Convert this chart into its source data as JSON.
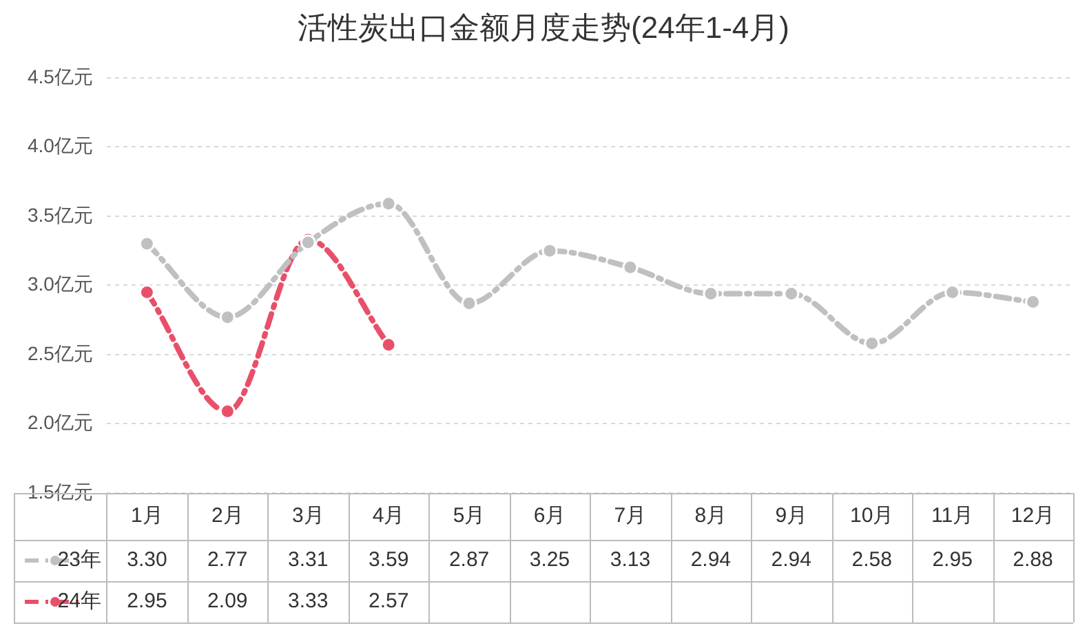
{
  "chart_data": {
    "type": "line",
    "title": "活性炭出口金额月度走势(24年1-4月)",
    "categories": [
      "1月",
      "2月",
      "3月",
      "4月",
      "5月",
      "6月",
      "7月",
      "8月",
      "9月",
      "10月",
      "11月",
      "12月"
    ],
    "series": [
      {
        "name": "23年",
        "color": "#c0c0c0",
        "values": [
          3.3,
          2.77,
          3.31,
          3.59,
          2.87,
          3.25,
          3.13,
          2.94,
          2.94,
          2.58,
          2.95,
          2.88
        ],
        "value_labels": [
          "3.30",
          "2.77",
          "3.31",
          "3.59",
          "2.87",
          "3.25",
          "3.13",
          "2.94",
          "2.94",
          "2.58",
          "2.95",
          "2.88"
        ]
      },
      {
        "name": "24年",
        "color": "#e8506a",
        "values": [
          2.95,
          2.09,
          3.33,
          2.57,
          null,
          null,
          null,
          null,
          null,
          null,
          null,
          null
        ],
        "value_labels": [
          "2.95",
          "2.09",
          "3.33",
          "2.57",
          null,
          null,
          null,
          null,
          null,
          null,
          null,
          null
        ]
      }
    ],
    "ylim": [
      1.5,
      4.5
    ],
    "yticks": [
      {
        "value": 1.5,
        "label": "1.5亿元"
      },
      {
        "value": 2.0,
        "label": "2.0亿元"
      },
      {
        "value": 2.5,
        "label": "2.5亿元"
      },
      {
        "value": 3.0,
        "label": "3.0亿元"
      },
      {
        "value": 3.5,
        "label": "3.5亿元"
      },
      {
        "value": 4.0,
        "label": "4.0亿元"
      },
      {
        "value": 4.5,
        "label": "4.5亿元"
      }
    ],
    "grid": "y",
    "legend": "bottom",
    "marker": "circle",
    "line_style": "dashed"
  }
}
